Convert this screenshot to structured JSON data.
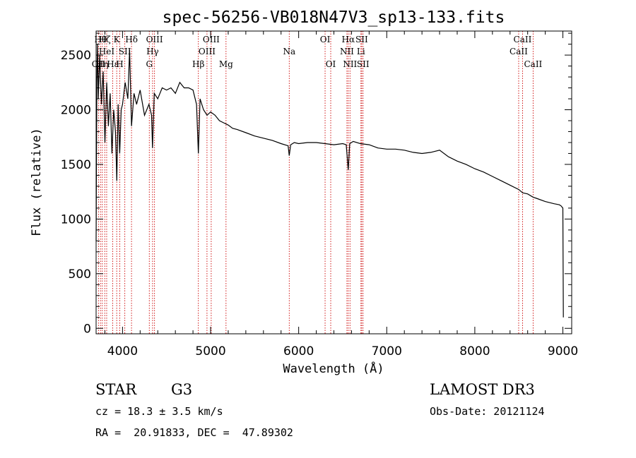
{
  "chart_data": {
    "type": "line",
    "title": "spec-56256-VB018N47V3_sp13-133.fits",
    "xlabel": "Wavelength (Å)",
    "ylabel": "Flux (relative)",
    "xlim": [
      3700,
      9100
    ],
    "ylim": [
      -50,
      2720
    ],
    "xticks": [
      4000,
      5000,
      6000,
      7000,
      8000,
      9000
    ],
    "yticks": [
      0,
      500,
      1000,
      1500,
      2000,
      2500
    ],
    "series": [
      {
        "name": "flux",
        "x": [
          3700,
          3708,
          3715,
          3725,
          3740,
          3760,
          3780,
          3800,
          3820,
          3840,
          3860,
          3880,
          3900,
          3920,
          3935,
          3950,
          3968,
          3985,
          4000,
          4030,
          4060,
          4080,
          4102,
          4130,
          4160,
          4200,
          4250,
          4300,
          4330,
          4340,
          4360,
          4400,
          4450,
          4500,
          4550,
          4600,
          4650,
          4700,
          4750,
          4800,
          4840,
          4861,
          4880,
          4920,
          4960,
          5000,
          5050,
          5100,
          5150,
          5200,
          5250,
          5300,
          5400,
          5500,
          5600,
          5700,
          5800,
          5880,
          5893,
          5910,
          5950,
          6000,
          6100,
          6200,
          6300,
          6400,
          6500,
          6540,
          6563,
          6580,
          6620,
          6700,
          6800,
          6900,
          7000,
          7100,
          7200,
          7300,
          7400,
          7500,
          7600,
          7700,
          7800,
          7900,
          8000,
          8100,
          8200,
          8300,
          8400,
          8500,
          8542,
          8600,
          8662,
          8700,
          8800,
          8900,
          8960,
          8980,
          9000,
          9005
        ],
        "values": [
          800,
          2250,
          2600,
          2100,
          2500,
          2050,
          2350,
          1700,
          2250,
          1850,
          2150,
          1600,
          2000,
          1800,
          1350,
          2050,
          1600,
          2000,
          2050,
          2250,
          2100,
          2550,
          1850,
          2150,
          2050,
          2180,
          1950,
          2050,
          1950,
          1650,
          2150,
          2100,
          2200,
          2180,
          2200,
          2150,
          2250,
          2200,
          2200,
          2180,
          2050,
          1600,
          2100,
          2000,
          1950,
          1980,
          1950,
          1900,
          1880,
          1860,
          1830,
          1820,
          1790,
          1760,
          1740,
          1720,
          1690,
          1670,
          1580,
          1680,
          1700,
          1690,
          1700,
          1700,
          1690,
          1680,
          1690,
          1680,
          1450,
          1690,
          1710,
          1690,
          1680,
          1650,
          1640,
          1640,
          1630,
          1610,
          1600,
          1610,
          1630,
          1570,
          1530,
          1500,
          1460,
          1430,
          1390,
          1350,
          1310,
          1270,
          1240,
          1230,
          1200,
          1190,
          1160,
          1140,
          1130,
          1120,
          1100,
          100
        ]
      }
    ],
    "lines": [
      {
        "x": 3727,
        "label": "OII",
        "row": 2
      },
      {
        "x": 3750,
        "label": "Hθ",
        "row": 0
      },
      {
        "x": 3770,
        "label": "Hη",
        "row": 2
      },
      {
        "x": 3798,
        "label": "Hζ",
        "row": 0
      },
      {
        "x": 3820,
        "label": "HeI",
        "row": 1
      },
      {
        "x": 3889,
        "label": "Hε",
        "row": 2
      },
      {
        "x": 3934,
        "label": "K",
        "row": 0
      },
      {
        "x": 3969,
        "label": "H",
        "row": 2
      },
      {
        "x": 4026,
        "label": "SII",
        "row": 1
      },
      {
        "x": 4102,
        "label": "Hδ",
        "row": 0
      },
      {
        "x": 4304,
        "label": "G",
        "row": 2
      },
      {
        "x": 4341,
        "label": "Hγ",
        "row": 1
      },
      {
        "x": 4363,
        "label": "OIII",
        "row": 0
      },
      {
        "x": 4861,
        "label": "Hβ",
        "row": 2
      },
      {
        "x": 4959,
        "label": "OIII",
        "row": 1
      },
      {
        "x": 5007,
        "label": "OIII",
        "row": 0
      },
      {
        "x": 5175,
        "label": "Mg",
        "row": 2
      },
      {
        "x": 5893,
        "label": "Na",
        "row": 1
      },
      {
        "x": 6300,
        "label": "OI",
        "row": 0
      },
      {
        "x": 6364,
        "label": "OI",
        "row": 2
      },
      {
        "x": 6548,
        "label": "NII",
        "row": 1
      },
      {
        "x": 6563,
        "label": "Hα",
        "row": 0
      },
      {
        "x": 6583,
        "label": "NII",
        "row": 2
      },
      {
        "x": 6707,
        "label": "Li",
        "row": 1
      },
      {
        "x": 6716,
        "label": "SII",
        "row": 0
      },
      {
        "x": 6731,
        "label": "SII",
        "row": 2
      },
      {
        "x": 8498,
        "label": "CaII",
        "row": 1
      },
      {
        "x": 8542,
        "label": "CaII",
        "row": 0
      },
      {
        "x": 8662,
        "label": "CaII",
        "row": 2
      }
    ]
  },
  "info": {
    "class": "STAR",
    "subclass": "G3",
    "survey": "LAMOST DR3",
    "cz": "cz = 18.3 ± 3.5 km/s",
    "obs_date": "Obs-Date: 20121124",
    "coords": "RA =  20.91833, DEC =  47.89302"
  }
}
